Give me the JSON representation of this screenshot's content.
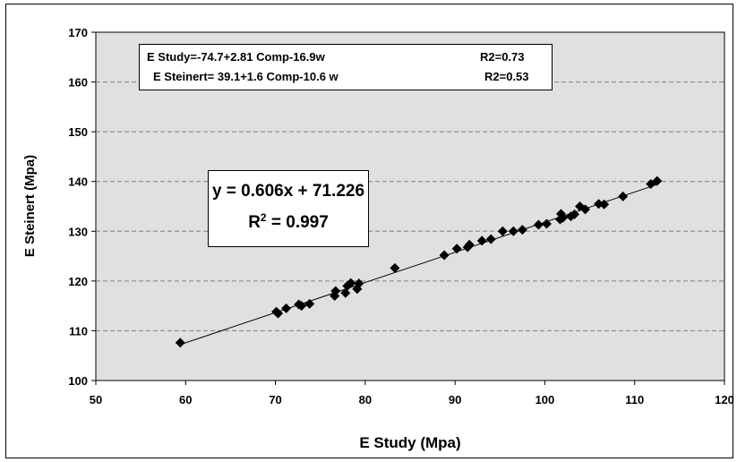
{
  "chart_data": {
    "type": "scatter",
    "xlabel": "E Study (Mpa)",
    "ylabel": "E Steinert  (Mpa)",
    "xlim": [
      50,
      120
    ],
    "ylim": [
      100,
      170
    ],
    "x_ticks": [
      50,
      60,
      70,
      80,
      90,
      100,
      110,
      120
    ],
    "y_ticks": [
      100,
      110,
      120,
      130,
      140,
      150,
      160,
      170
    ],
    "grid": "horizontal dashed",
    "plot_background": "#e0e0e0",
    "marker": "diamond",
    "marker_color": "#000000",
    "series": [
      {
        "points": [
          [
            59.4,
            107.6
          ],
          [
            70.1,
            113.8
          ],
          [
            70.3,
            113.5
          ],
          [
            71.2,
            114.5
          ],
          [
            72.6,
            115.3
          ],
          [
            72.9,
            115.0
          ],
          [
            73.8,
            115.4
          ],
          [
            76.6,
            117.0
          ],
          [
            76.7,
            118.0
          ],
          [
            77.8,
            117.6
          ],
          [
            78.0,
            119.0
          ],
          [
            78.4,
            119.6
          ],
          [
            79.1,
            118.4
          ],
          [
            79.3,
            119.5
          ],
          [
            83.3,
            122.6
          ],
          [
            88.8,
            125.2
          ],
          [
            90.2,
            126.5
          ],
          [
            91.4,
            126.8
          ],
          [
            91.6,
            127.3
          ],
          [
            93.0,
            128.1
          ],
          [
            94.0,
            128.4
          ],
          [
            95.3,
            130.0
          ],
          [
            96.5,
            130.0
          ],
          [
            97.5,
            130.3
          ],
          [
            99.3,
            131.3
          ],
          [
            100.2,
            131.5
          ],
          [
            101.7,
            132.4
          ],
          [
            101.8,
            133.5
          ],
          [
            102.0,
            132.7
          ],
          [
            102.9,
            133.0
          ],
          [
            103.3,
            133.4
          ],
          [
            103.9,
            135.0
          ],
          [
            104.5,
            134.4
          ],
          [
            106.0,
            135.5
          ],
          [
            106.6,
            135.4
          ],
          [
            108.7,
            137.0
          ],
          [
            111.8,
            139.5
          ],
          [
            112.5,
            140.1
          ]
        ]
      }
    ],
    "trendline": {
      "slope": 0.606,
      "intercept": 71.226,
      "x_range": [
        59.4,
        112.5
      ]
    },
    "annotations": {
      "equations": [
        {
          "eq": "E Study=-74.7+2.81 Comp-16.9w",
          "r2": "R2=0.73"
        },
        {
          "eq": "E Steinert= 39.1+1.6 Comp-10.6 w",
          "r2": "R2=0.53"
        }
      ],
      "fit_equation": "y = 0.606x + 71.226",
      "fit_r2_prefix": "R",
      "fit_r2_sup": "2",
      "fit_r2_value": " = 0.997"
    }
  }
}
